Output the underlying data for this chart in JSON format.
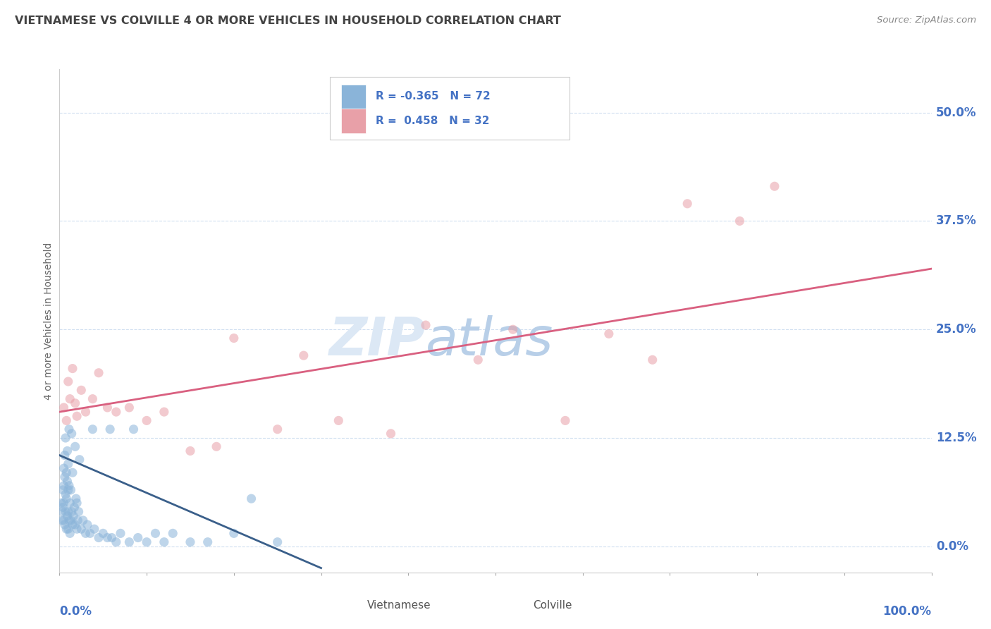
{
  "title": "VIETNAMESE VS COLVILLE 4 OR MORE VEHICLES IN HOUSEHOLD CORRELATION CHART",
  "source": "Source: ZipAtlas.com",
  "ylabel": "4 or more Vehicles in Household",
  "ytick_values": [
    0.0,
    12.5,
    25.0,
    37.5,
    50.0
  ],
  "xlim": [
    0.0,
    100.0
  ],
  "ylim": [
    -3.0,
    55.0
  ],
  "legend_label1": "Vietnamese",
  "legend_label2": "Colville",
  "blue_color": "#8ab4d9",
  "pink_color": "#e8a0a8",
  "blue_line_color": "#3a5f8a",
  "pink_line_color": "#d96080",
  "title_color": "#434343",
  "source_color": "#888888",
  "grid_color": "#d0dff0",
  "watermark_zip_color": "#dce8f5",
  "watermark_atlas_color": "#b8cfe8",
  "legend_text_color": "#4472c4",
  "legend_r1_val": "-0.365",
  "legend_n1_val": "72",
  "legend_r2_val": "0.458",
  "legend_n2_val": "32",
  "blue_scatter_x": [
    0.2,
    0.3,
    0.4,
    0.4,
    0.5,
    0.5,
    0.5,
    0.6,
    0.6,
    0.7,
    0.7,
    0.8,
    0.8,
    0.8,
    0.9,
    0.9,
    1.0,
    1.0,
    1.0,
    1.0,
    1.1,
    1.1,
    1.2,
    1.2,
    1.3,
    1.3,
    1.4,
    1.5,
    1.5,
    1.6,
    1.7,
    1.8,
    1.9,
    2.0,
    2.0,
    2.1,
    2.2,
    2.5,
    2.7,
    3.0,
    3.2,
    3.5,
    4.0,
    4.5,
    5.0,
    5.5,
    6.0,
    6.5,
    7.0,
    8.0,
    9.0,
    10.0,
    11.0,
    12.0,
    13.0,
    15.0,
    17.0,
    20.0,
    22.0,
    25.0,
    0.3,
    0.5,
    0.6,
    0.7,
    0.9,
    1.1,
    1.4,
    1.8,
    2.3,
    3.8,
    5.8,
    8.5
  ],
  "blue_scatter_y": [
    5.0,
    3.0,
    4.5,
    6.5,
    3.0,
    5.0,
    7.0,
    2.5,
    8.0,
    4.0,
    6.0,
    2.0,
    5.5,
    8.5,
    3.5,
    7.5,
    2.0,
    4.0,
    6.5,
    9.5,
    3.0,
    7.0,
    1.5,
    5.0,
    3.0,
    6.5,
    4.0,
    2.5,
    8.5,
    3.5,
    4.5,
    2.5,
    5.5,
    2.0,
    5.0,
    3.0,
    4.0,
    2.0,
    3.0,
    1.5,
    2.5,
    1.5,
    2.0,
    1.0,
    1.5,
    1.0,
    1.0,
    0.5,
    1.5,
    0.5,
    1.0,
    0.5,
    1.5,
    0.5,
    1.5,
    0.5,
    0.5,
    1.5,
    5.5,
    0.5,
    4.0,
    9.0,
    10.5,
    12.5,
    11.0,
    13.5,
    13.0,
    11.5,
    10.0,
    13.5,
    13.5,
    13.5
  ],
  "pink_scatter_x": [
    0.5,
    0.8,
    1.0,
    1.2,
    1.5,
    1.8,
    2.0,
    2.5,
    3.0,
    3.8,
    4.5,
    5.5,
    6.5,
    8.0,
    10.0,
    12.0,
    15.0,
    18.0,
    20.0,
    25.0,
    28.0,
    32.0,
    38.0,
    42.0,
    48.0,
    52.0,
    58.0,
    63.0,
    68.0,
    72.0,
    78.0,
    82.0
  ],
  "pink_scatter_y": [
    16.0,
    14.5,
    19.0,
    17.0,
    20.5,
    16.5,
    15.0,
    18.0,
    15.5,
    17.0,
    20.0,
    16.0,
    15.5,
    16.0,
    14.5,
    15.5,
    11.0,
    11.5,
    24.0,
    13.5,
    22.0,
    14.5,
    13.0,
    25.5,
    21.5,
    25.0,
    14.5,
    24.5,
    21.5,
    39.5,
    37.5,
    41.5
  ],
  "blue_line_x": [
    0.0,
    30.0
  ],
  "blue_line_y": [
    10.5,
    -2.5
  ],
  "pink_line_x": [
    0.0,
    100.0
  ],
  "pink_line_y": [
    15.5,
    32.0
  ]
}
